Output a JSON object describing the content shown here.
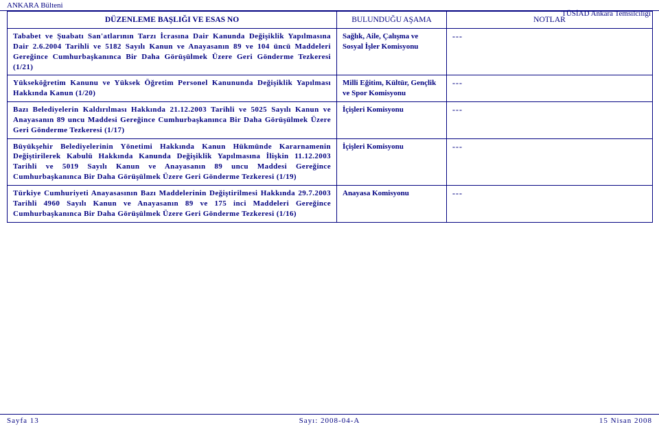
{
  "top_left": "ANKARA Bülteni",
  "top_right": "TÜSİAD Ankara Temsilciliği",
  "columns": {
    "title": "DÜZENLEME BAŞLIĞI VE ESAS NO",
    "stage": "BULUNDUĞU AŞAMA",
    "notes": "NOTLAR"
  },
  "rows": [
    {
      "desc": "Tababet ve Şuabatı San'atlarının Tarzı İcrasına Dair Kanunda Değişiklik Yapılmasına Dair 2.6.2004 Tarihli ve 5182 Sayılı Kanun ve Anayasanın 89 ve 104 üncü Maddeleri Gereğince Cumhurbaşkanınca Bir Daha Görüşülmek Üzere Geri Gönderme Tezkeresi (1/21)",
      "stage": "Sağlık, Aile, Çalışma ve Sosyal İşler Komisyonu",
      "notes": "---"
    },
    {
      "desc": "Yükseköğretim Kanunu ve Yüksek Öğretim Personel Kanununda Değişiklik Yapılması Hakkında Kanun (1/20)",
      "stage": "Milli Eğitim, Kültür, Gençlik ve Spor Komisyonu",
      "notes": "---"
    },
    {
      "desc": "Bazı Belediyelerin Kaldırılması Hakkında 21.12.2003 Tarihli ve 5025 Sayılı Kanun ve Anayasanın 89 uncu Maddesi Gereğince Cumhurbaşkanınca Bir Daha Görüşülmek Üzere Geri Gönderme Tezkeresi (1/17)",
      "stage": "İçişleri Komisyonu",
      "notes": "---"
    },
    {
      "desc": "Büyükşehir Belediyelerinin Yönetimi Hakkında Kanun Hükmünde Kararnamenin Değiştirilerek Kabulü Hakkında Kanunda Değişiklik Yapılmasına İlişkin 11.12.2003 Tarihli ve 5019 Sayılı Kanun ve Anayasanın 89 uncu Maddesi Gereğince Cumhurbaşkanınca Bir Daha Görüşülmek Üzere Geri Gönderme Tezkeresi (1/19)",
      "stage": "İçişleri Komisyonu",
      "notes": "---"
    },
    {
      "desc": "Türkiye Cumhuriyeti Anayasasının Bazı Maddelerinin Değiştirilmesi Hakkında 29.7.2003 Tarihli 4960 Sayılı Kanun ve Anayasanın 89 ve 175 inci Maddeleri Gereğince Cumhurbaşkanınca Bir Daha Görüşülmek Üzere Geri Gönderme Tezkeresi (1/16)",
      "stage": "Anayasa Komisyonu",
      "notes": "---"
    }
  ],
  "footer": {
    "left": "Sayfa 13",
    "mid": "Sayı: 2008-04-A",
    "right": "15 Nisan 2008"
  }
}
